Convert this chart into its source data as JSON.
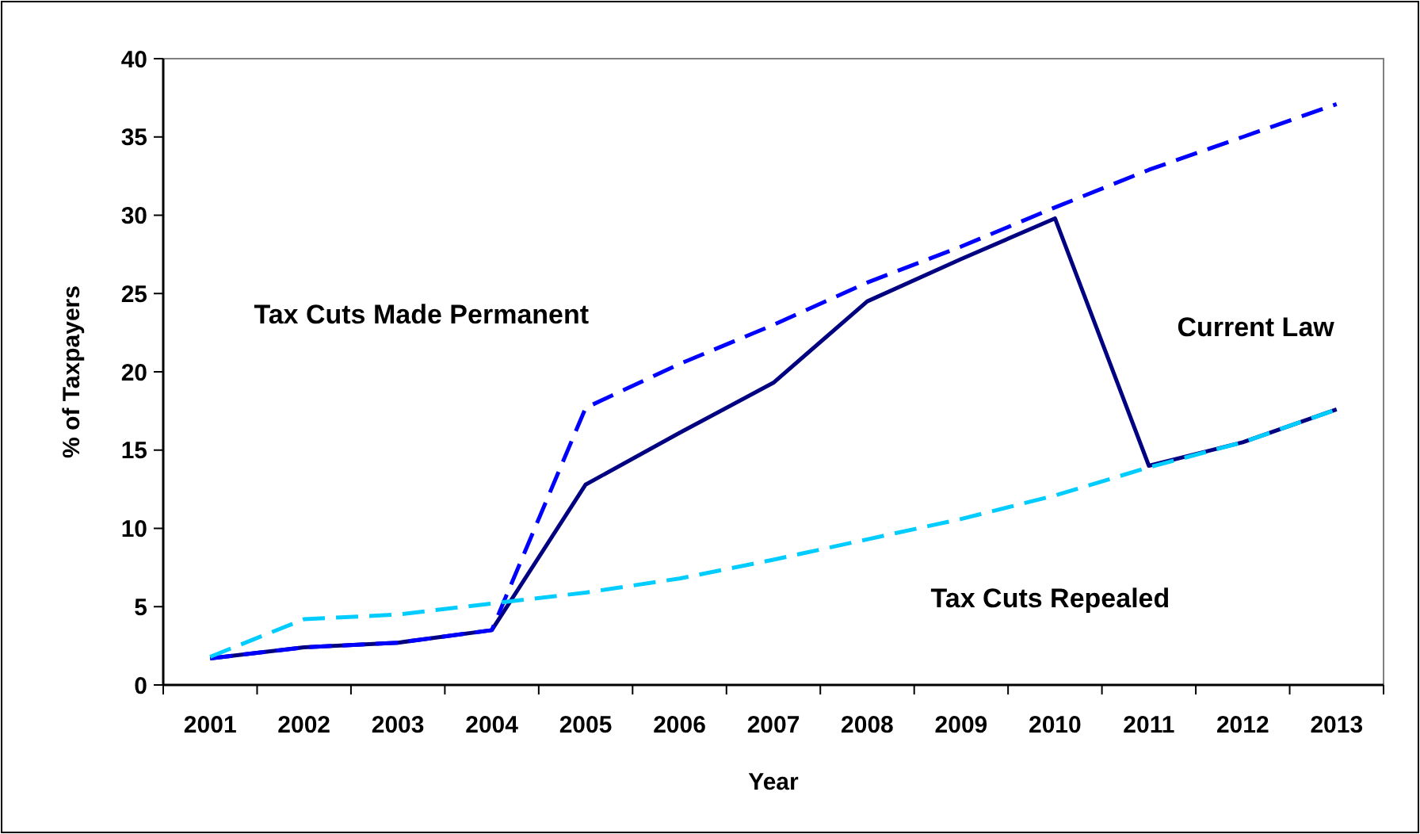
{
  "chart_data": {
    "type": "line",
    "xlabel": "Year",
    "ylabel": "% of Taxpayers",
    "categories": [
      "2001",
      "2002",
      "2003",
      "2004",
      "2005",
      "2006",
      "2007",
      "2008",
      "2009",
      "2010",
      "2011",
      "2012",
      "2013"
    ],
    "ylim": [
      0,
      40
    ],
    "yticks": [
      0,
      5,
      10,
      15,
      20,
      25,
      30,
      35,
      40
    ],
    "grid": false,
    "legend": false,
    "marker": "none",
    "series": [
      {
        "name": "Current Law",
        "color": "#000080",
        "line_style": "solid",
        "values": [
          1.7,
          2.4,
          2.7,
          3.5,
          12.8,
          16.1,
          19.3,
          24.5,
          27.2,
          29.8,
          14.0,
          15.5,
          17.6
        ]
      },
      {
        "name": "Tax Cuts Made Permanent",
        "color": "#0000ff",
        "line_style": "dashed",
        "values": [
          1.7,
          2.4,
          2.7,
          3.5,
          17.7,
          20.5,
          23.0,
          25.7,
          28.0,
          30.5,
          32.9,
          35.0,
          37.1
        ]
      },
      {
        "name": "Tax Cuts Repealed",
        "color": "#00ccff",
        "line_style": "dashed",
        "values": [
          1.8,
          4.2,
          4.5,
          5.2,
          5.9,
          6.8,
          8.0,
          9.3,
          10.6,
          12.1,
          13.9,
          15.5,
          17.6
        ]
      }
    ]
  }
}
